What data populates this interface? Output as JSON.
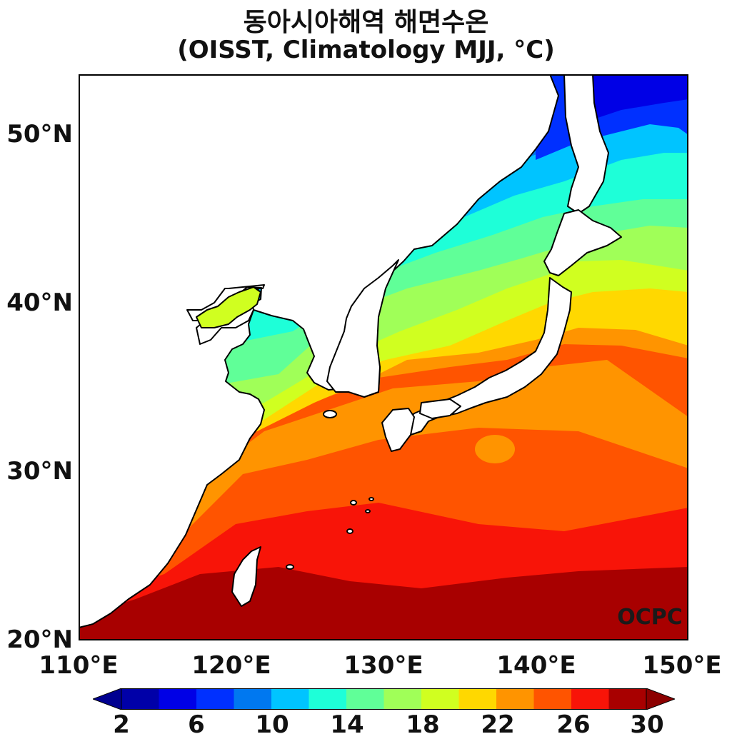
{
  "title_line1": "동아시아해역 해면수온",
  "title_line2": "(OISST, Climatology MJJ, °C)",
  "watermark": "OCPC",
  "lat_labels": [
    "50°N",
    "40°N",
    "30°N",
    "20°N"
  ],
  "lon_labels": [
    "110°E",
    "120°E",
    "130°E",
    "140°E",
    "150°E"
  ],
  "colorbar": {
    "tick_labels": [
      "2",
      "6",
      "10",
      "14",
      "18",
      "22",
      "26",
      "30"
    ],
    "levels": [
      2,
      4,
      6,
      8,
      10,
      12,
      14,
      16,
      18,
      20,
      22,
      24,
      26,
      28,
      30
    ],
    "colors": [
      "#0000a8",
      "#0000e6",
      "#0030ff",
      "#0078f0",
      "#00c4ff",
      "#1effd8",
      "#60ff98",
      "#a0ff58",
      "#d0ff20",
      "#ffd800",
      "#ff9400",
      "#ff5400",
      "#f81408",
      "#a80000"
    ],
    "under_color": "#000090",
    "over_color": "#8c0000"
  },
  "map": {
    "lon_range": [
      110,
      150
    ],
    "lat_range": [
      20,
      53.5
    ],
    "variable": "sea surface temperature",
    "units": "°C"
  }
}
